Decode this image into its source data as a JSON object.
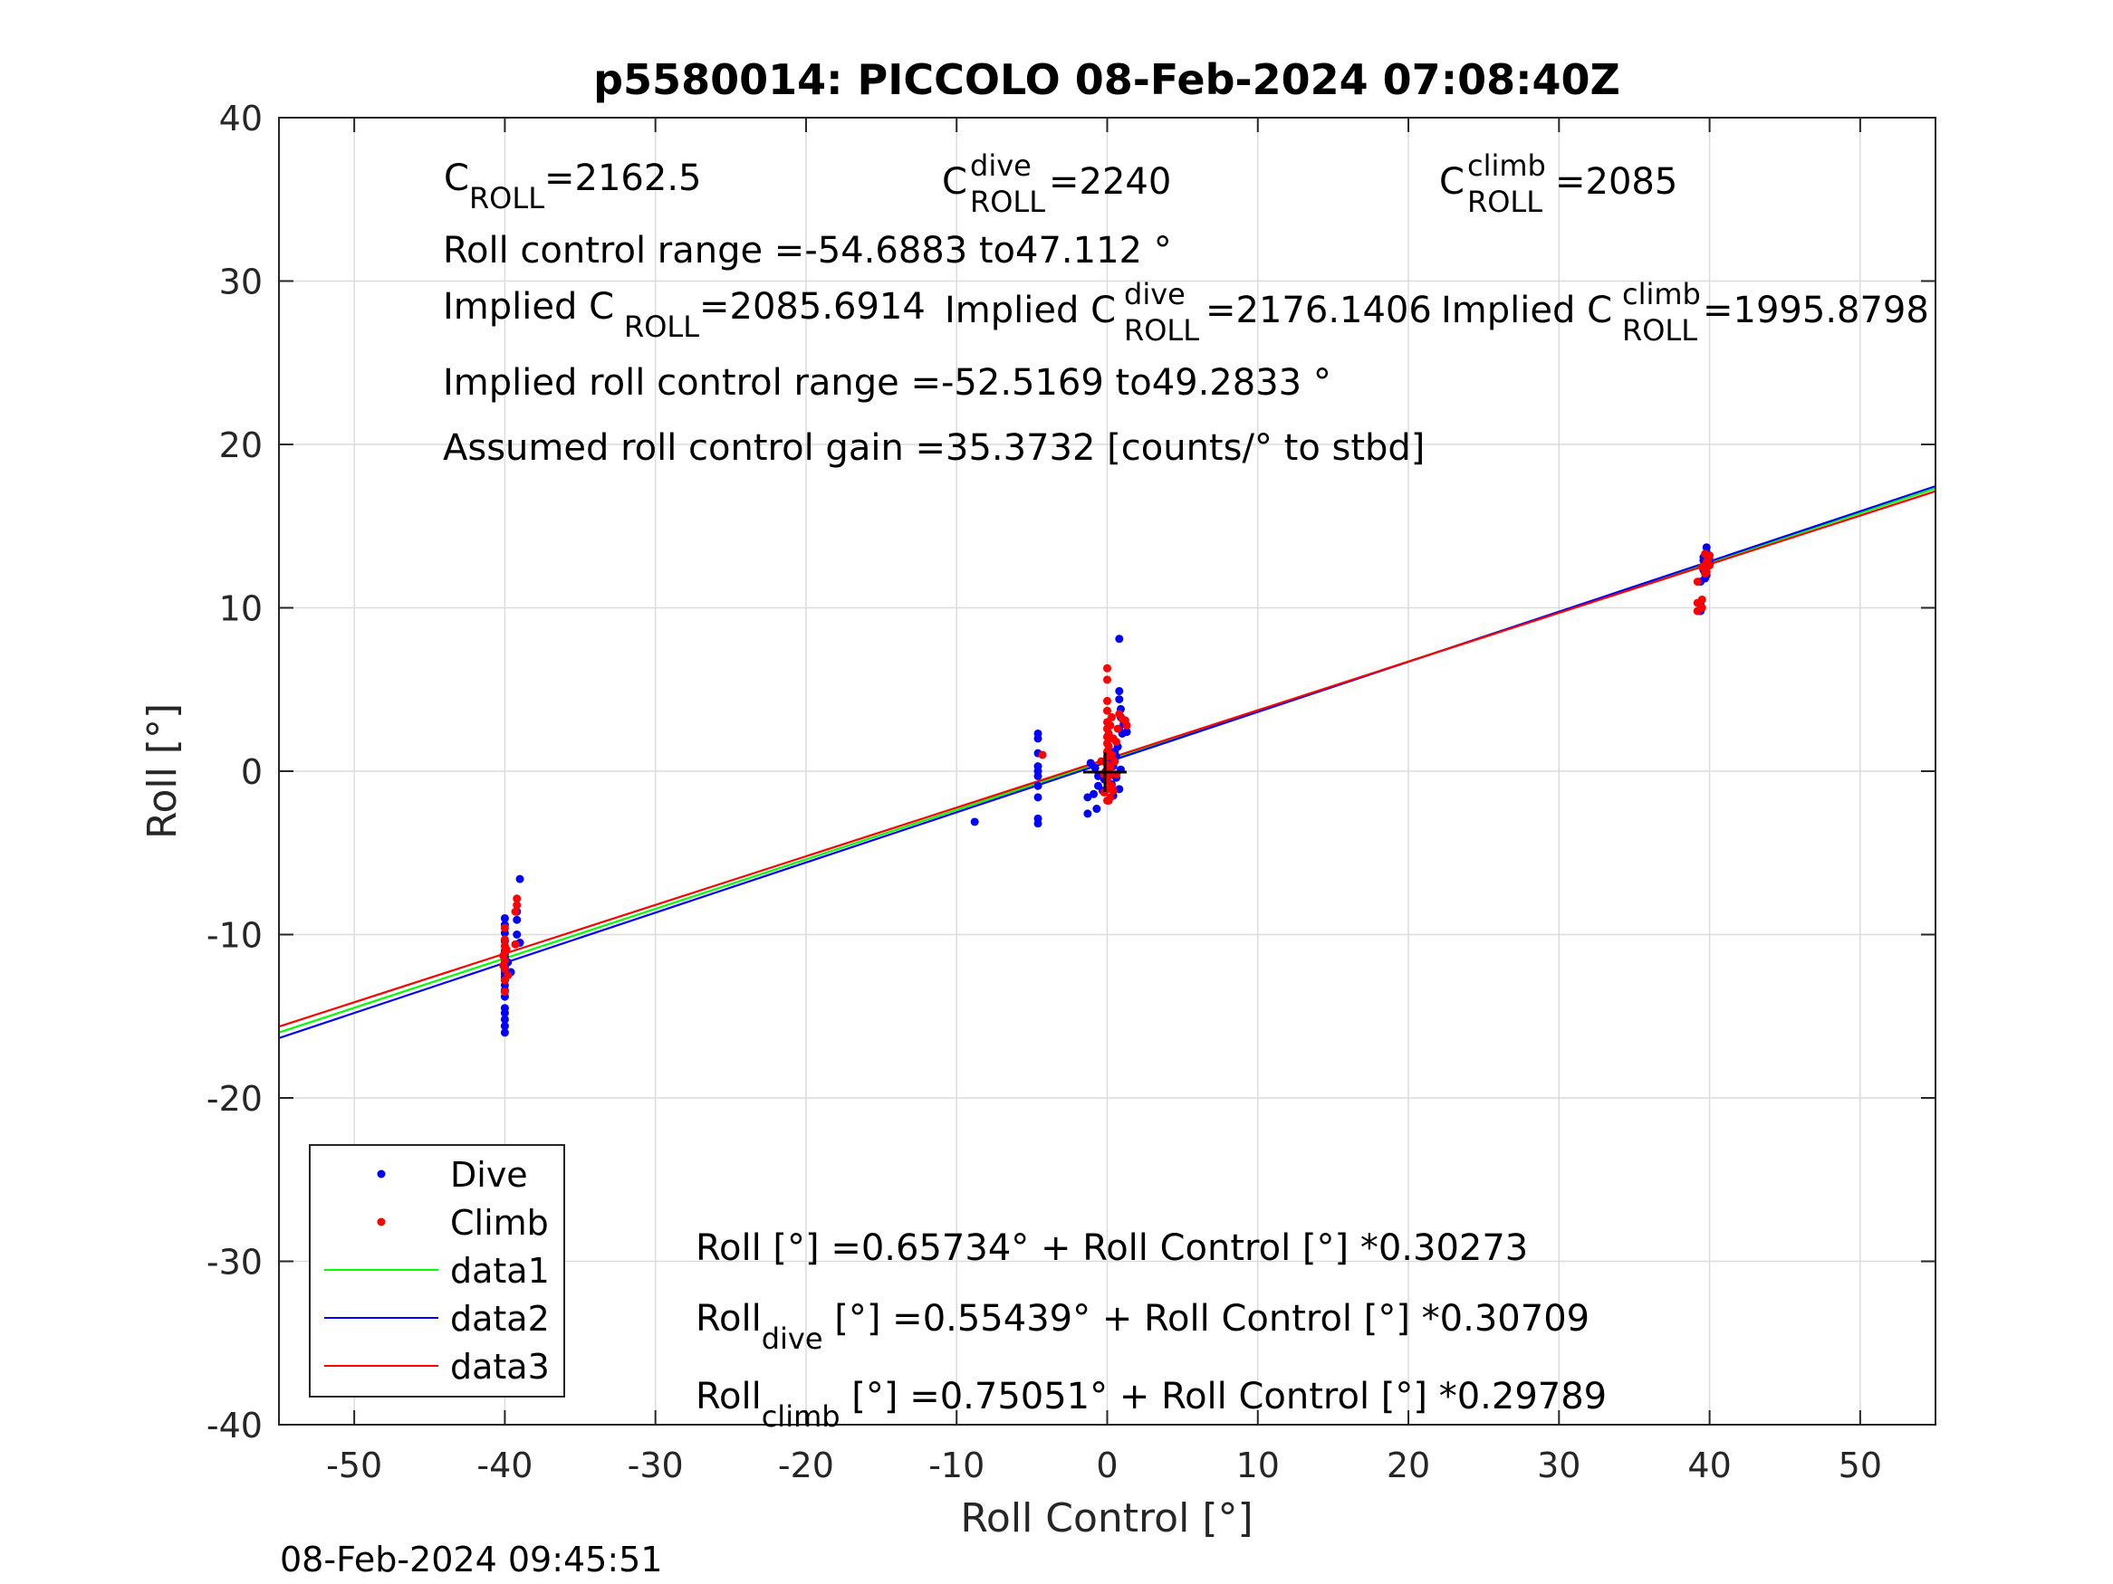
{
  "chart_data": {
    "type": "scatter",
    "title": "p5580014: PICCOLO 08-Feb-2024 07:08:40Z",
    "xlabel": "Roll Control [°]",
    "ylabel": "Roll [°]",
    "xlim": [
      -55,
      55
    ],
    "ylim": [
      -40,
      40
    ],
    "xticks": [
      -50,
      -40,
      -30,
      -20,
      -10,
      0,
      10,
      20,
      30,
      40,
      50
    ],
    "yticks": [
      -40,
      -30,
      -20,
      -10,
      0,
      10,
      20,
      30,
      40
    ],
    "grid": true,
    "legend_position": "bottom-left",
    "timestamp": "08-Feb-2024 09:45:51",
    "colors": {
      "dive": "#0000ff",
      "climb": "#ff0000",
      "data1": "#00ff00",
      "data2": "#0000ff",
      "data3": "#ff0000"
    },
    "annotations": {
      "c_roll": {
        "main": "C",
        "sub": "ROLL",
        "value": "=2162.5"
      },
      "c_roll_dive": {
        "main": "C",
        "sup": "dive",
        "sub": "ROLL",
        "value": " =2240"
      },
      "c_roll_climb": {
        "main": "C",
        "sup": "climb",
        "sub": "ROLL",
        "value": " =2085"
      },
      "roll_range": "Roll control range =-54.6883 to47.112 °",
      "implied_c_roll": {
        "main": "Implied C",
        "sub": "ROLL",
        "value": " =2085.6914"
      },
      "implied_c_roll_dive": {
        "main": "Implied C",
        "sup": "dive",
        "sub": "ROLL",
        "value": " =2176.1406"
      },
      "implied_c_roll_climb": {
        "main": "Implied C",
        "sup": "climb",
        "sub": "ROLL",
        "value": " =1995.8798"
      },
      "implied_range": "Implied roll control range =-52.5169 to49.2833 °",
      "gain": "Assumed roll control gain =35.3732 [counts/° to stbd]",
      "eq_all": "Roll [°] =0.65734° + Roll Control [°] *0.30273",
      "eq_dive": {
        "main": "Roll",
        "sub": "dive",
        "value": " [°] =0.55439° + Roll Control [°] *0.30709"
      },
      "eq_climb": {
        "main": "Roll",
        "sub": "climb",
        "value": " [°] =0.75051° + Roll Control [°] *0.29789"
      }
    },
    "series": [
      {
        "name": "Dive",
        "kind": "points",
        "color": "#0000ff",
        "points": [
          [
            -40,
            -16
          ],
          [
            -40,
            -15.6
          ],
          [
            -40,
            -15.2
          ],
          [
            -40,
            -14.8
          ],
          [
            -40,
            -14.5
          ],
          [
            -40,
            -13.8
          ],
          [
            -40,
            -13.4
          ],
          [
            -40,
            -13.1
          ],
          [
            -40,
            -12.8
          ],
          [
            -40,
            -12.6
          ],
          [
            -40,
            -12.4
          ],
          [
            -40,
            -12.2
          ],
          [
            -40,
            -12
          ],
          [
            -40,
            -11.8
          ],
          [
            -40,
            -11.6
          ],
          [
            -40,
            -11.4
          ],
          [
            -40,
            -11.2
          ],
          [
            -40,
            -11
          ],
          [
            -40,
            -10.4
          ],
          [
            -40,
            -9.9
          ],
          [
            -40,
            -9.4
          ],
          [
            -40,
            -9
          ],
          [
            -39.6,
            -12.3
          ],
          [
            -39.8,
            -11.7
          ],
          [
            -39,
            -6.6
          ],
          [
            -39.2,
            -8.6
          ],
          [
            -39.2,
            -9.1
          ],
          [
            -39.2,
            -10
          ],
          [
            -39,
            -10.5
          ],
          [
            -8.8,
            -3.1
          ],
          [
            -4.6,
            2.3
          ],
          [
            -4.6,
            2
          ],
          [
            -4.6,
            1.1
          ],
          [
            -4.6,
            0.3
          ],
          [
            -4.6,
            0
          ],
          [
            -4.6,
            -0.3
          ],
          [
            -4.6,
            -0.9
          ],
          [
            -4.6,
            -1.6
          ],
          [
            -4.6,
            -2.9
          ],
          [
            -4.6,
            -3.2
          ],
          [
            -1.3,
            -2.6
          ],
          [
            -1.3,
            -1.6
          ],
          [
            -0.9,
            -1.4
          ],
          [
            -0.7,
            -2.3
          ],
          [
            -0.6,
            -0.9
          ],
          [
            -0.6,
            -0.3
          ],
          [
            -0.3,
            -1.2
          ],
          [
            -0.2,
            -0.5
          ],
          [
            -1.1,
            0.5
          ],
          [
            -0.8,
            0.2
          ],
          [
            0.1,
            0.6
          ],
          [
            0.2,
            -0.2
          ],
          [
            0.3,
            -0.8
          ],
          [
            0.4,
            0.3
          ],
          [
            0.5,
            1.2
          ],
          [
            0.6,
            0.9
          ],
          [
            0.7,
            1.5
          ],
          [
            0.8,
            8.1
          ],
          [
            0.8,
            4.9
          ],
          [
            0.8,
            4.4
          ],
          [
            0.8,
            2.6
          ],
          [
            0.9,
            3.3
          ],
          [
            0.9,
            3.8
          ],
          [
            1,
            2.3
          ],
          [
            1.1,
            2.9
          ],
          [
            1.3,
            2.4
          ],
          [
            0.6,
            -0.4
          ],
          [
            0.9,
            0.1
          ],
          [
            0.4,
            -1.5
          ],
          [
            0.8,
            -1.1
          ],
          [
            39.4,
            10.2
          ],
          [
            39.4,
            9.8
          ],
          [
            39.4,
            11.6
          ],
          [
            39.6,
            12.3
          ],
          [
            39.6,
            12.9
          ],
          [
            39.8,
            13.4
          ],
          [
            39.8,
            13.7
          ],
          [
            39.8,
            12
          ],
          [
            39.9,
            12.6
          ],
          [
            40,
            12.9
          ],
          [
            39.7,
            11.8
          ],
          [
            39.6,
            13.1
          ]
        ]
      },
      {
        "name": "Climb",
        "kind": "points",
        "color": "#ff0000",
        "points": [
          [
            -40,
            -13.5
          ],
          [
            -40,
            -12.8
          ],
          [
            -40,
            -12.1
          ],
          [
            -40,
            -11.6
          ],
          [
            -40,
            -11.1
          ],
          [
            -40,
            -10.7
          ],
          [
            -40,
            -10.3
          ],
          [
            -40,
            -9.6
          ],
          [
            -40.1,
            -11.9
          ],
          [
            -40.1,
            -11.3
          ],
          [
            -39.8,
            -12.5
          ],
          [
            -39.9,
            -10.9
          ],
          [
            -39.2,
            -7.8
          ],
          [
            -39.2,
            -8.2
          ],
          [
            -39.3,
            -8.6
          ],
          [
            -39.3,
            -10.6
          ],
          [
            -4.3,
            1
          ],
          [
            -0.4,
            0.6
          ],
          [
            -0.2,
            -0.2
          ],
          [
            -0.2,
            -1.3
          ],
          [
            0,
            -0.6
          ],
          [
            0,
            0.4
          ],
          [
            0,
            1.2
          ],
          [
            0,
            2.1
          ],
          [
            0,
            3
          ],
          [
            0,
            3.7
          ],
          [
            0,
            4.3
          ],
          [
            0,
            6.3
          ],
          [
            0,
            5.6
          ],
          [
            0,
            -1.8
          ],
          [
            0,
            -1.1
          ],
          [
            0,
            0.9
          ],
          [
            0,
            1.7
          ],
          [
            0,
            2.6
          ],
          [
            0.1,
            2.3
          ],
          [
            0.1,
            -0.3
          ],
          [
            0.1,
            1.5
          ],
          [
            0.2,
            0.2
          ],
          [
            0.2,
            2.8
          ],
          [
            0.2,
            -1.6
          ],
          [
            0.3,
            1
          ],
          [
            0.3,
            3.3
          ],
          [
            0.4,
            2
          ],
          [
            0.5,
            0.6
          ],
          [
            0.6,
            -0.2
          ],
          [
            0.7,
            2.6
          ],
          [
            0.8,
            3.5
          ],
          [
            1,
            3.2
          ],
          [
            1.2,
            3.1
          ],
          [
            1.3,
            2.8
          ],
          [
            0.3,
            -0.9
          ],
          [
            0.6,
            1.8
          ],
          [
            -0.1,
            0
          ],
          [
            0.4,
            -1.2
          ],
          [
            0.1,
            -1.8
          ],
          [
            39.2,
            9.8
          ],
          [
            39.2,
            10.3
          ],
          [
            39.2,
            11.6
          ],
          [
            39.5,
            10
          ],
          [
            39.5,
            10.5
          ],
          [
            39.5,
            12.5
          ],
          [
            39.7,
            12.1
          ],
          [
            39.7,
            13.3
          ],
          [
            39.8,
            12.8
          ],
          [
            39.9,
            13
          ],
          [
            40,
            12.6
          ],
          [
            40,
            13.2
          ],
          [
            39.8,
            12.2
          ]
        ]
      },
      {
        "name": "data1",
        "kind": "line",
        "color": "#00ff00",
        "intercept": 0.65734,
        "slope": 0.30273
      },
      {
        "name": "data2",
        "kind": "line",
        "color": "#0000ff",
        "intercept": 0.55439,
        "slope": 0.30709
      },
      {
        "name": "data3",
        "kind": "line",
        "color": "#ff0000",
        "intercept": 0.75051,
        "slope": 0.29789
      }
    ]
  }
}
